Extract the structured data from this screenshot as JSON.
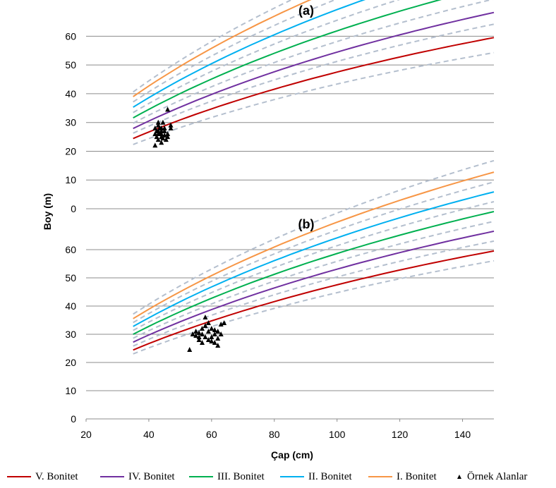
{
  "chart_data": [
    {
      "type": "line",
      "panel_label": "(a)",
      "xlim": [
        20,
        150
      ],
      "ylim": [
        0,
        65
      ],
      "y_ticks": [
        "0",
        "10",
        "20",
        "30",
        "40",
        "50",
        "60"
      ],
      "grid": true,
      "series": [
        {
          "name": "V. Bonitet",
          "color": "#c00000",
          "x": [
            35,
            150
          ],
          "a": 100,
          "b": 0.0045,
          "c": 0.76
        },
        {
          "name": "IV. Bonitet",
          "color": "#7030a0",
          "x": [
            35,
            150
          ],
          "a": 115,
          "b": 0.0045,
          "c": 0.76
        },
        {
          "name": "III. Bonitet",
          "color": "#00b050",
          "x": [
            35,
            150
          ],
          "a": 131,
          "b": 0.0045,
          "c": 0.76
        },
        {
          "name": "II. Bonitet",
          "color": "#00b0f0",
          "x": [
            35,
            150
          ],
          "a": 147,
          "b": 0.0045,
          "c": 0.76
        },
        {
          "name": "I. Bonitet",
          "color": "#f79646",
          "x": [
            35,
            150
          ],
          "a": 163,
          "b": 0.0045,
          "c": 0.76
        }
      ],
      "bounds": {
        "color": "#b4bfce",
        "a_values": [
          91,
          108,
          123,
          139,
          155,
          170
        ]
      },
      "samples": {
        "name": "Örnek Alanlar",
        "points": [
          [
            42,
            28
          ],
          [
            42.5,
            27
          ],
          [
            43,
            29
          ],
          [
            43.5,
            26
          ],
          [
            44,
            28
          ],
          [
            44,
            25
          ],
          [
            43,
            24
          ],
          [
            42,
            22
          ],
          [
            45,
            27
          ],
          [
            44.5,
            30
          ],
          [
            43,
            30
          ],
          [
            46,
            26
          ],
          [
            45.5,
            24
          ],
          [
            47,
            29
          ],
          [
            44,
            23
          ],
          [
            43,
            27
          ],
          [
            42.5,
            25
          ],
          [
            45,
            28
          ],
          [
            46,
            34.5
          ],
          [
            44,
            26
          ],
          [
            43.5,
            28
          ],
          [
            45,
            25.5
          ],
          [
            47,
            28
          ],
          [
            43,
            26
          ],
          [
            44,
            27
          ],
          [
            44.5,
            24.5
          ],
          [
            42,
            26
          ],
          [
            46,
            25
          ]
        ]
      }
    },
    {
      "type": "line",
      "panel_label": "(b)",
      "xlim": [
        20,
        150
      ],
      "ylim": [
        0,
        65
      ],
      "y_ticks": [
        "0",
        "10",
        "20",
        "30",
        "40",
        "50",
        "60"
      ],
      "x_ticks": [
        "20",
        "40",
        "60",
        "80",
        "100",
        "120",
        "140"
      ],
      "xlabel": "Çap (cm)",
      "ylabel": "Boy (m)",
      "grid": true,
      "series": [
        {
          "name": "V. Bonitet",
          "color": "#c00000",
          "x": [
            35,
            150
          ],
          "a": 100,
          "b": 0.0045,
          "c": 0.76
        },
        {
          "name": "IV. Bonitet",
          "color": "#7030a0",
          "x": [
            35,
            150
          ],
          "a": 112,
          "b": 0.0045,
          "c": 0.76
        },
        {
          "name": "III. Bonitet",
          "color": "#00b050",
          "x": [
            35,
            150
          ],
          "a": 124,
          "b": 0.0045,
          "c": 0.76
        },
        {
          "name": "II. Bonitet",
          "color": "#00b0f0",
          "x": [
            35,
            150
          ],
          "a": 136,
          "b": 0.0045,
          "c": 0.76
        },
        {
          "name": "I. Bonitet",
          "color": "#f79646",
          "x": [
            35,
            150
          ],
          "a": 148,
          "b": 0.0045,
          "c": 0.76
        }
      ],
      "bounds": {
        "color": "#b4bfce",
        "a_values": [
          94,
          106,
          118,
          130,
          142,
          155
        ]
      },
      "samples": {
        "name": "Örnek Alanlar",
        "points": [
          [
            53,
            24.5
          ],
          [
            54,
            30
          ],
          [
            55,
            31
          ],
          [
            56,
            29
          ],
          [
            56,
            28
          ],
          [
            57,
            30
          ],
          [
            57,
            32
          ],
          [
            58,
            33
          ],
          [
            58,
            36
          ],
          [
            59,
            31
          ],
          [
            59,
            28
          ],
          [
            60,
            32
          ],
          [
            60,
            29
          ],
          [
            61,
            30
          ],
          [
            61,
            27
          ],
          [
            62,
            31
          ],
          [
            62,
            26
          ],
          [
            63,
            30
          ],
          [
            63,
            33.5
          ],
          [
            64,
            34
          ],
          [
            57,
            27
          ],
          [
            58,
            29
          ],
          [
            59,
            34
          ],
          [
            60,
            27.5
          ],
          [
            61,
            31.5
          ],
          [
            56,
            30.5
          ],
          [
            55,
            29.5
          ],
          [
            62,
            28.5
          ]
        ]
      }
    }
  ],
  "legend": {
    "items": [
      {
        "label": "V. Bonitet",
        "color": "#c00000"
      },
      {
        "label": "IV. Bonitet",
        "color": "#7030a0"
      },
      {
        "label": "III. Bonitet",
        "color": "#00b050"
      },
      {
        "label": "II. Bonitet",
        "color": "#00b0f0"
      },
      {
        "label": "I. Bonitet",
        "color": "#f79646"
      }
    ],
    "samples_label": "Örnek Alanlar"
  }
}
